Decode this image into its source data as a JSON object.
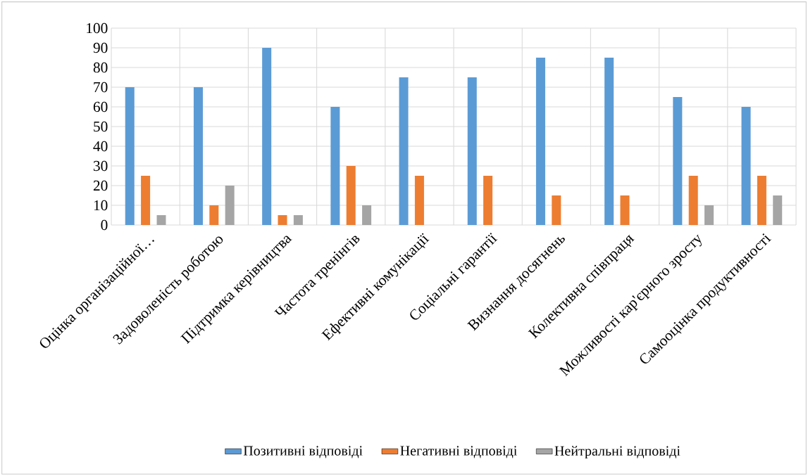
{
  "chart_data": {
    "type": "bar",
    "categories": [
      "Оцінка організаційної…",
      "Задоволеність роботою",
      "Підтримка керівництва",
      "Частота тренінгів",
      "Ефективні комунікації",
      "Соціальні гарантії",
      "Визнання досягнень",
      "Колективна співпраця",
      "Можливості кар'єрного зросту",
      "Самооцінка продуктивності"
    ],
    "series": [
      {
        "name": "Позитивні відповіді",
        "color": "#5b9bd5",
        "values": [
          70,
          70,
          90,
          60,
          75,
          75,
          85,
          85,
          65,
          60
        ]
      },
      {
        "name": "Негативні відповіді",
        "color": "#ed7d31",
        "values": [
          25,
          10,
          5,
          30,
          25,
          25,
          15,
          15,
          25,
          25
        ]
      },
      {
        "name": "Нейтральні відповіді",
        "color": "#a5a5a5",
        "values": [
          5,
          20,
          5,
          10,
          0,
          0,
          0,
          0,
          10,
          15
        ]
      }
    ],
    "ylim": [
      0,
      100
    ],
    "yticks": [
      0,
      10,
      20,
      30,
      40,
      50,
      60,
      70,
      80,
      90,
      100
    ],
    "grid": true,
    "legend": "bottom"
  }
}
